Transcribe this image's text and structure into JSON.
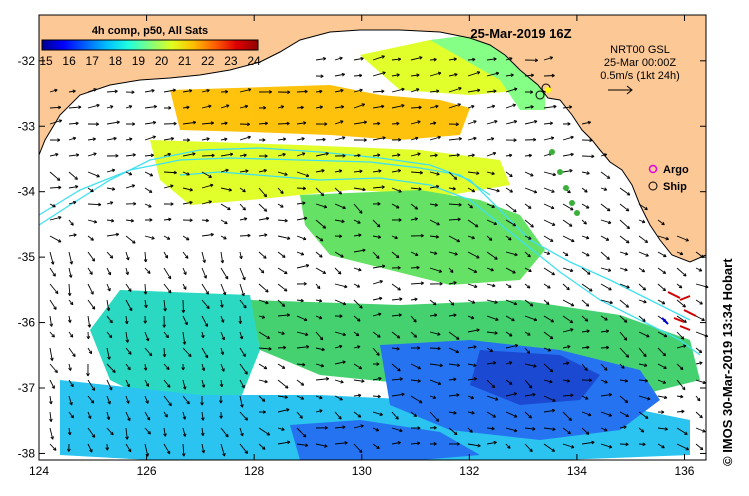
{
  "map": {
    "title": "25-Mar-2019 16Z",
    "colorbar": {
      "title": "4h comp, p50, All Sats",
      "ticks": [
        "15",
        "16",
        "17",
        "18",
        "19",
        "20",
        "21",
        "22",
        "23",
        "24"
      ],
      "colors": [
        "#00008f",
        "#0000ff",
        "#0060ff",
        "#00bfff",
        "#20ffdf",
        "#80ff80",
        "#dfff20",
        "#ffbf00",
        "#ff6000",
        "#df0000",
        "#8f0000"
      ]
    },
    "current_info": {
      "line1": "NRT00 GSL",
      "line2": "25-Mar 00:00Z",
      "line3": "0.5m/s (1kt 24h)"
    },
    "legend": {
      "argo_label": "Argo",
      "ship_label": "Ship"
    },
    "axes": {
      "x_ticks": [
        "124",
        "126",
        "128",
        "130",
        "132",
        "134",
        "136"
      ],
      "y_ticks": [
        "-32",
        "-33",
        "-34",
        "-35",
        "-36",
        "-37",
        "-38"
      ]
    },
    "credit": "© IMOS 30-Mar-2019 13:34 Hobart",
    "colors": {
      "land": "#fcc896",
      "contour": "#40e0f0"
    }
  }
}
